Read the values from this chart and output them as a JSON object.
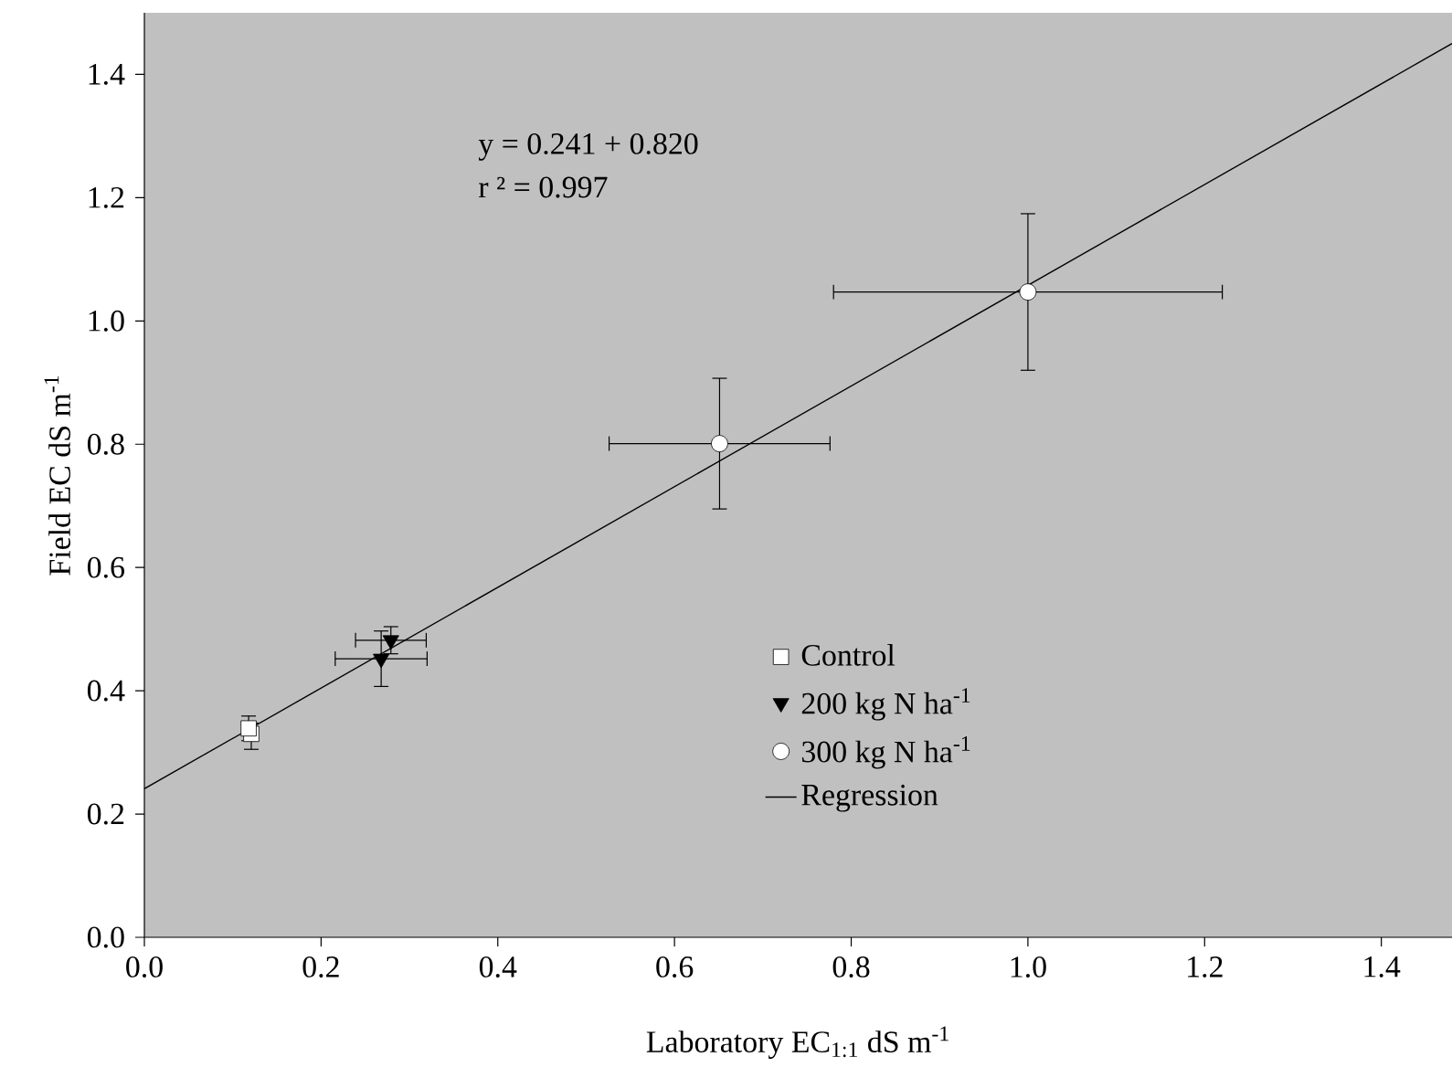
{
  "chart_data": {
    "type": "scatter",
    "xlabel": "Laboratory EC$_{1:1}$ dS m$^{-1}$",
    "ylabel": "Field EC dS m$^{-1}$",
    "annotations": [
      "y = 0.241 + 0.820",
      "r ² = 0.997"
    ],
    "xlim": [
      0,
      1.48
    ],
    "ylim": [
      0,
      1.5
    ],
    "xticks": [
      {
        "value": 0,
        "label": "0.0"
      },
      0.2,
      0.4,
      0.6,
      0.8,
      {
        "value": 1,
        "label": "1.0"
      },
      1.2,
      1.4
    ],
    "yticks": [
      {
        "value": 0,
        "label": "0.0"
      },
      0.2,
      0.4,
      0.6,
      0.8,
      {
        "value": 1,
        "label": "1.0"
      },
      1.2,
      1.4
    ],
    "legend": "right",
    "grid": false,
    "series": [
      {
        "name": "Control",
        "color": "#ffffff",
        "marker": "square",
        "x": [
          0.121,
          0.118
        ],
        "values": [
          0.33,
          0.339
        ],
        "errors": [
          [
            0.305,
            0.3475
          ],
          0.02
        ],
        "xerrors": [
          0.004,
          0.004
        ]
      },
      {
        "name": "200 kg N ha$^{-1}$",
        "color": "#000000",
        "marker": "triangle-down",
        "x": [
          0.279,
          0.268
        ],
        "values": [
          0.482,
          0.452
        ],
        "errors": [
          0.022,
          0.045
        ],
        "xerrors": [
          0.04,
          0.052
        ]
      },
      {
        "name": "300 kg N ha$^{-1}$",
        "color": "#ffffff",
        "marker": "circle",
        "x": [
          0.651,
          1.0
        ],
        "values": [
          0.801,
          1.047
        ],
        "errors": [
          0.106,
          0.127
        ],
        "xerrors": [
          0.125,
          0.22
        ]
      },
      {
        "name": "Regression",
        "type": "line",
        "color": "#000000",
        "x": [
          0,
          1.48
        ],
        "values": [
          0.241,
          1.45
        ]
      }
    ]
  }
}
